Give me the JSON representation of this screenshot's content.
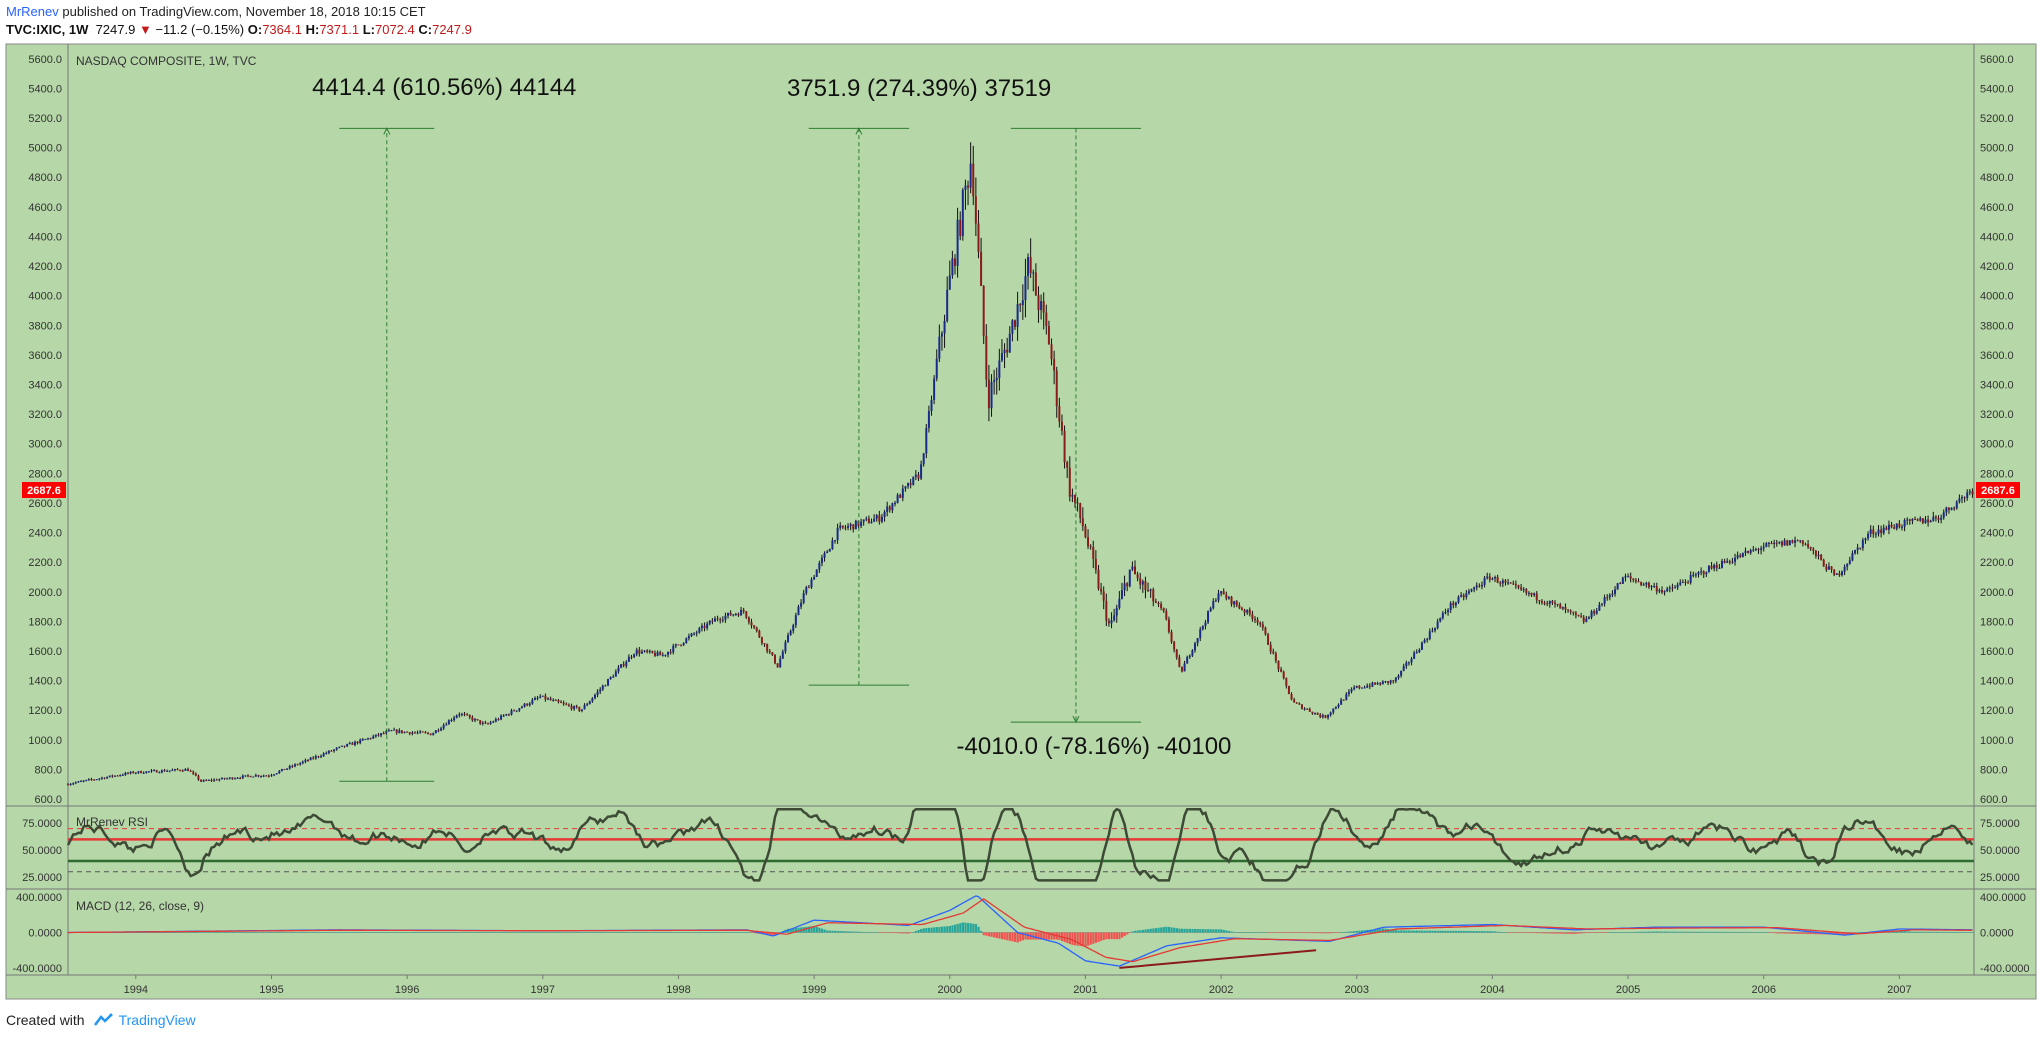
{
  "header": {
    "author": "MrRenev",
    "published": " published on TradingView.com, November 18, 2018 10:15 CET",
    "symbol": "TVC:IXIC, 1W",
    "last": "7247.9",
    "change": "−11.2 (−0.15%)",
    "o_label": "O:",
    "o_value": "7364.1",
    "h_label": "H:",
    "h_value": "7371.1",
    "l_label": "L:",
    "l_value": "7072.4",
    "c_label": "C:",
    "c_value": "7247.9"
  },
  "footer": {
    "created_with": "Created with",
    "brand": "TradingView"
  },
  "colors": {
    "background": "#b6d7a8",
    "up": "#1a2a8a",
    "down": "#8b1a1a",
    "rsi_line": "#3d4a35",
    "macd": "#2962ff",
    "signal": "#e53935",
    "hist_up": "#26a69a",
    "hist_down": "#ef5350",
    "annotation": "#2e7d32",
    "price_tag": "#ff0000"
  },
  "chart_data": [
    {
      "type": "candlestick",
      "title": "NASDAQ COMPOSITE, 1W, TVC",
      "ylim": [
        560,
        5700
      ],
      "y_ticks": [
        "5600.0",
        "5400.0",
        "5200.0",
        "5000.0",
        "4800.0",
        "4600.0",
        "4400.0",
        "4200.0",
        "4000.0",
        "3800.0",
        "3600.0",
        "3400.0",
        "3200.0",
        "3000.0",
        "2800.0",
        "2600.0",
        "2400.0",
        "2200.0",
        "2000.0",
        "1800.0",
        "1600.0",
        "1400.0",
        "1200.0",
        "1000.0",
        "800.0",
        "600.0"
      ],
      "x_ticks": [
        "1994",
        "1995",
        "1996",
        "1997",
        "1998",
        "1999",
        "2000",
        "2001",
        "2002",
        "2003",
        "2004",
        "2005",
        "2006",
        "2007"
      ],
      "xlim": [
        1993.5,
        2007.55
      ],
      "price_path": [
        [
          1993.5,
          700
        ],
        [
          1994.0,
          780
        ],
        [
          1994.4,
          800
        ],
        [
          1994.5,
          720
        ],
        [
          1994.9,
          760
        ],
        [
          1995.0,
          760
        ],
        [
          1995.5,
          940
        ],
        [
          1995.9,
          1060
        ],
        [
          1996.2,
          1040
        ],
        [
          1996.4,
          1180
        ],
        [
          1996.6,
          1100
        ],
        [
          1997.0,
          1290
        ],
        [
          1997.3,
          1200
        ],
        [
          1997.7,
          1600
        ],
        [
          1997.9,
          1570
        ],
        [
          1998.3,
          1820
        ],
        [
          1998.5,
          1870
        ],
        [
          1998.75,
          1500
        ],
        [
          1998.95,
          2000
        ],
        [
          1999.2,
          2420
        ],
        [
          1999.5,
          2500
        ],
        [
          1999.8,
          2800
        ],
        [
          2000.0,
          4000
        ],
        [
          2000.18,
          4950
        ],
        [
          2000.3,
          3300
        ],
        [
          2000.45,
          3700
        ],
        [
          2000.6,
          4200
        ],
        [
          2000.75,
          3700
        ],
        [
          2000.9,
          2700
        ],
        [
          2001.0,
          2450
        ],
        [
          2001.2,
          1750
        ],
        [
          2001.35,
          2150
        ],
        [
          2001.6,
          1850
        ],
        [
          2001.72,
          1450
        ],
        [
          2002.0,
          2000
        ],
        [
          2002.3,
          1800
        ],
        [
          2002.55,
          1250
        ],
        [
          2002.78,
          1150
        ],
        [
          2003.0,
          1350
        ],
        [
          2003.3,
          1400
        ],
        [
          2003.7,
          1900
        ],
        [
          2004.0,
          2100
        ],
        [
          2004.5,
          1900
        ],
        [
          2004.7,
          1800
        ],
        [
          2005.0,
          2100
        ],
        [
          2005.3,
          2000
        ],
        [
          2005.6,
          2150
        ],
        [
          2006.0,
          2300
        ],
        [
          2006.3,
          2350
        ],
        [
          2006.55,
          2100
        ],
        [
          2006.8,
          2400
        ],
        [
          2007.0,
          2450
        ],
        [
          2007.3,
          2500
        ],
        [
          2007.55,
          2687.6
        ]
      ],
      "last_price": "2687.6",
      "annotations": [
        {
          "label": "4414.4 (610.56%) 44144",
          "from": 720,
          "to": 5130
        },
        {
          "label": "3751.9 (274.39%) 37519",
          "from": 1370,
          "to": 5130
        },
        {
          "label": "-4010.0 (-78.16%) -40100",
          "from": 5130,
          "to": 1120
        }
      ]
    },
    {
      "type": "line",
      "title": "MrRenev RSI",
      "ylim": [
        15,
        90
      ],
      "y_ticks": [
        "75.0000",
        "50.0000",
        "25.0000"
      ],
      "levels": [
        70,
        60,
        40,
        30
      ]
    },
    {
      "type": "bar",
      "title": "MACD (12, 26, close, 9)",
      "ylim": [
        -480,
        480
      ],
      "y_ticks": [
        "400.0000",
        "0.0000",
        "-400.0000"
      ],
      "macd_path": [
        [
          1993.5,
          0
        ],
        [
          1995.5,
          30
        ],
        [
          1997.0,
          20
        ],
        [
          1998.5,
          30
        ],
        [
          1998.7,
          -40
        ],
        [
          1999.0,
          140
        ],
        [
          1999.7,
          80
        ],
        [
          2000.0,
          250
        ],
        [
          2000.2,
          420
        ],
        [
          2000.5,
          0
        ],
        [
          2000.8,
          -120
        ],
        [
          2001.0,
          -320
        ],
        [
          2001.25,
          -380
        ],
        [
          2001.6,
          -150
        ],
        [
          2002.0,
          -60
        ],
        [
          2002.8,
          -100
        ],
        [
          2003.2,
          60
        ],
        [
          2004.0,
          90
        ],
        [
          2004.6,
          30
        ],
        [
          2005.2,
          60
        ],
        [
          2006.0,
          60
        ],
        [
          2006.6,
          -30
        ],
        [
          2007.0,
          40
        ],
        [
          2007.55,
          30
        ]
      ],
      "signal_path": [
        [
          1993.5,
          0
        ],
        [
          1995.5,
          25
        ],
        [
          1997.0,
          20
        ],
        [
          1998.5,
          25
        ],
        [
          1998.8,
          -20
        ],
        [
          1999.1,
          110
        ],
        [
          1999.8,
          90
        ],
        [
          2000.1,
          220
        ],
        [
          2000.25,
          380
        ],
        [
          2000.55,
          60
        ],
        [
          2000.9,
          -80
        ],
        [
          2001.15,
          -280
        ],
        [
          2001.35,
          -330
        ],
        [
          2001.7,
          -170
        ],
        [
          2002.1,
          -70
        ],
        [
          2002.8,
          -90
        ],
        [
          2003.3,
          40
        ],
        [
          2004.1,
          80
        ],
        [
          2004.7,
          40
        ],
        [
          2005.3,
          50
        ],
        [
          2006.1,
          55
        ],
        [
          2006.7,
          -15
        ],
        [
          2007.1,
          30
        ],
        [
          2007.55,
          25
        ]
      ],
      "trend_line": [
        [
          2001.25,
          -400
        ],
        [
          2002.7,
          -200
        ]
      ]
    }
  ]
}
